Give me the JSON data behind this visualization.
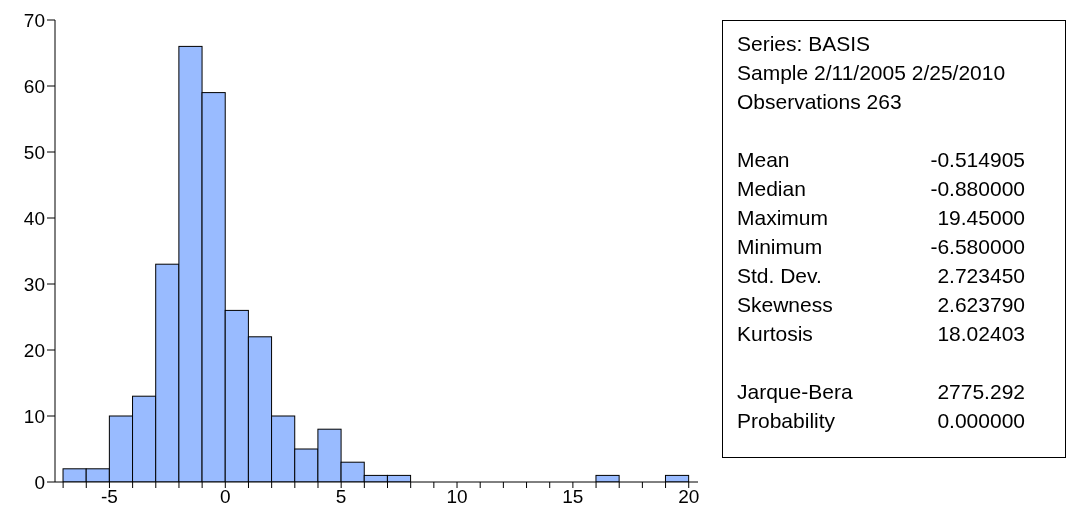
{
  "chart_data": {
    "type": "histogram",
    "bins": [
      -7,
      -6,
      -5,
      -4,
      -3,
      -2,
      -1,
      0,
      1,
      2,
      3,
      4,
      5,
      6,
      7,
      8,
      9,
      10,
      11,
      12,
      13,
      14,
      15,
      16,
      17,
      18,
      19,
      20
    ],
    "values": [
      2,
      2,
      10,
      13,
      33,
      66,
      59,
      26,
      22,
      10,
      5,
      8,
      3,
      1,
      1,
      0,
      0,
      0,
      0,
      0,
      0,
      0,
      0,
      1,
      0,
      0,
      1
    ],
    "color": "#99bbff",
    "xlim": [
      -7.35,
      20.4
    ],
    "xticks": [
      {
        "value": -7,
        "label": null
      },
      {
        "value": -6,
        "label": null
      },
      -5,
      {
        "value": -4,
        "label": null
      },
      {
        "value": -3,
        "label": null
      },
      {
        "value": -2,
        "label": null
      },
      {
        "value": -1,
        "label": null
      },
      0,
      {
        "value": 1,
        "label": null
      },
      {
        "value": 2,
        "label": null
      },
      {
        "value": 3,
        "label": null
      },
      {
        "value": 4,
        "label": null
      },
      5,
      {
        "value": 6,
        "label": null
      },
      {
        "value": 7,
        "label": null
      },
      {
        "value": 8,
        "label": null
      },
      {
        "value": 9,
        "label": null
      },
      10,
      {
        "value": 11,
        "label": null
      },
      {
        "value": 12,
        "label": null
      },
      {
        "value": 13,
        "label": null
      },
      {
        "value": 14,
        "label": null
      },
      15,
      {
        "value": 16,
        "label": null
      },
      {
        "value": 17,
        "label": null
      },
      {
        "value": 18,
        "label": null
      },
      {
        "value": 19,
        "label": null
      },
      20
    ],
    "ylim": [
      0,
      70
    ],
    "yticks": [
      0,
      10,
      20,
      30,
      40,
      50,
      60,
      70
    ],
    "annotations": [
      "Series: BASIS",
      "Sample 2/11/2005 2/25/2010",
      "Observations 263",
      "Mean\t-0.514905",
      "Median\t-0.880000",
      "Maximum\t19.45000",
      "Minimum\t-6.580000",
      "Std. Dev.\t2.723450",
      "Skewness\t2.623790",
      "Kurtosis\t18.02403",
      "Jarque-Bera\t2775.292",
      "Probability\t0.000000"
    ]
  }
}
